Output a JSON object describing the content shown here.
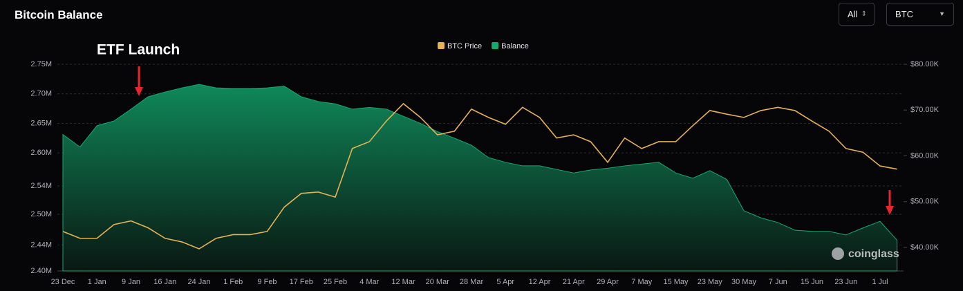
{
  "header": {
    "title": "Bitcoin Balance",
    "controls": [
      "All",
      "BTC"
    ]
  },
  "chart_data": {
    "type": "line",
    "annotations": [
      "ETF Launch"
    ],
    "watermark": "coinglass",
    "legend": "top",
    "grid": true,
    "categories": [
      "23 Dec",
      null,
      "1 Jan",
      null,
      "9 Jan",
      null,
      "16 Jan",
      null,
      "24 Jan",
      null,
      "1 Feb",
      null,
      "9 Feb",
      null,
      "17 Feb",
      null,
      "25 Feb",
      null,
      "4 Mar",
      null,
      "12 Mar",
      null,
      "20 Mar",
      null,
      "28 Mar",
      null,
      "5 Apr",
      null,
      "12 Apr",
      null,
      "21 Apr",
      null,
      "29 Apr",
      null,
      "7 May",
      null,
      "15 May",
      null,
      "23 May",
      null,
      "30 May",
      null,
      "7 Jun",
      null,
      "15 Jun",
      null,
      "23 Jun",
      null,
      "1 Jul",
      null
    ],
    "ylim": [
      2400000,
      2750000
    ],
    "yticks": [
      {
        "value": 2750000,
        "label": "2.75M"
      },
      {
        "value": 2700000,
        "label": "2.70M"
      },
      {
        "value": 2650000,
        "label": "2.65M"
      },
      {
        "value": 2600000,
        "label": "2.60M"
      },
      {
        "value": 2544000,
        "label": "2.54M"
      },
      {
        "value": 2496000,
        "label": "2.50M"
      },
      {
        "value": 2444000,
        "label": "2.44M"
      },
      {
        "value": 2400000,
        "label": "2.40M"
      }
    ],
    "y2lim": [
      34870,
      80000
    ],
    "y2ticks": [
      {
        "value": 80000,
        "label": "$80.00K"
      },
      {
        "value": 70000,
        "label": "$70.00K"
      },
      {
        "value": 60000,
        "label": "$60.00K"
      },
      {
        "value": 50000,
        "label": "$50.00K"
      },
      {
        "value": 40000,
        "label": "$40.00K"
      }
    ],
    "series": [
      {
        "name": "BTC Price",
        "color": "#e6b352",
        "axis": "y2",
        "values": [
          43500,
          42000,
          42000,
          45000,
          45800,
          44300,
          42000,
          41200,
          39700,
          42000,
          42800,
          42800,
          43500,
          48800,
          51800,
          52100,
          51000,
          61600,
          63100,
          67600,
          71400,
          68400,
          64600,
          65400,
          70200,
          68400,
          66900,
          70600,
          68400,
          63900,
          64600,
          63100,
          58600,
          63900,
          61600,
          63100,
          63100,
          66600,
          69900,
          69100,
          68400,
          69900,
          70600,
          69900,
          67600,
          65400,
          61600,
          60800,
          57800,
          57100
        ]
      },
      {
        "name": "Balance",
        "color": "#17a86e",
        "type": "area",
        "values": [
          2631000,
          2610000,
          2646000,
          2654000,
          2674000,
          2695000,
          2703000,
          2710000,
          2716000,
          2710000,
          2709000,
          2709000,
          2710000,
          2713000,
          2695000,
          2687000,
          2683000,
          2674000,
          2677000,
          2674000,
          2662000,
          2650000,
          2636000,
          2625000,
          2613000,
          2592000,
          2584000,
          2578000,
          2578000,
          2572000,
          2566000,
          2571000,
          2574000,
          2578000,
          2581000,
          2584000,
          2566000,
          2557000,
          2570000,
          2555000,
          2502000,
          2490000,
          2482000,
          2469000,
          2467000,
          2467000,
          2461000,
          2473000,
          2484000,
          2452000
        ]
      }
    ]
  }
}
